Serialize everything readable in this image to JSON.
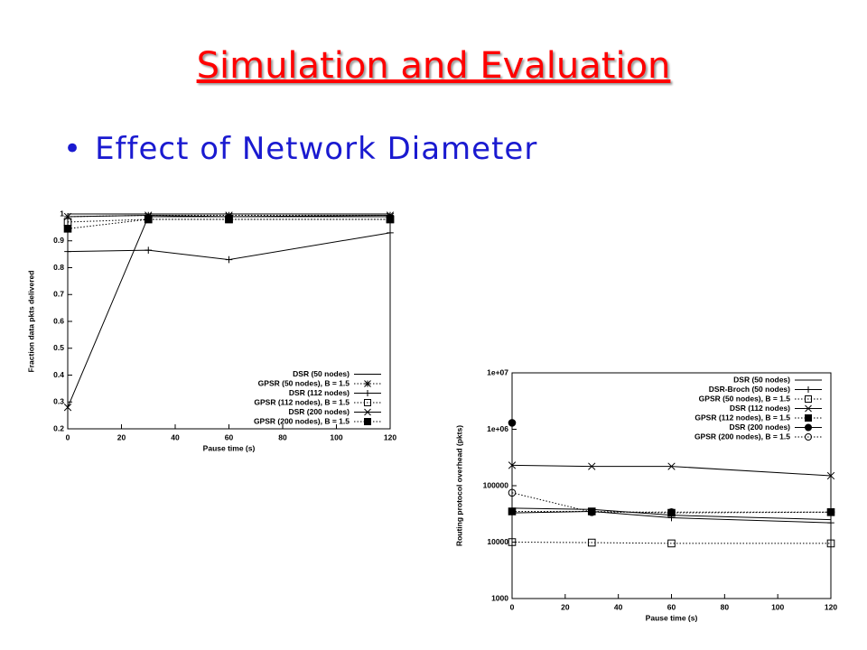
{
  "header": {
    "title": "Simulation and Evaluation",
    "bullet": "Effect of Network Diameter"
  },
  "chart_data": [
    {
      "type": "line",
      "xlabel": "Pause time (s)",
      "ylabel": "Fraction data pkts delivered",
      "x": [
        0,
        30,
        60,
        120
      ],
      "xlim": [
        0,
        120
      ],
      "xticks": [
        0,
        20,
        40,
        60,
        80,
        100,
        120
      ],
      "ylim": [
        0.2,
        1
      ],
      "yticks": [
        0.2,
        0.3,
        0.4,
        0.5,
        0.6,
        0.7,
        0.8,
        0.9,
        1
      ],
      "log": false,
      "legend": "lower right",
      "series": [
        {
          "name": "DSR (50 nodes)",
          "color": "#000000",
          "marker": "none",
          "dash": false,
          "values": [
            0.99,
            0.995,
            0.99,
            0.995
          ]
        },
        {
          "name": "GPSR (50 nodes), B = 1.5",
          "color": "#000000",
          "marker": "star",
          "dash": true,
          "values": [
            0.99,
            0.995,
            0.995,
            0.995
          ]
        },
        {
          "name": "DSR (112 nodes)",
          "color": "#000000",
          "marker": "plus",
          "dash": false,
          "values": [
            0.86,
            0.865,
            0.83,
            0.93
          ]
        },
        {
          "name": "GPSR (112 nodes), B = 1.5",
          "color": "#000000",
          "marker": "square-open",
          "dash": true,
          "values": [
            0.97,
            0.98,
            0.98,
            0.98
          ]
        },
        {
          "name": "DSR (200 nodes)",
          "color": "#000000",
          "marker": "x",
          "dash": false,
          "values": [
            0.28,
            0.99,
            0.99,
            0.99
          ]
        },
        {
          "name": "GPSR (200 nodes), B = 1.5",
          "color": "#000000",
          "marker": "square-filled",
          "dash": true,
          "values": [
            0.945,
            0.98,
            0.98,
            0.98
          ]
        }
      ]
    },
    {
      "type": "line",
      "xlabel": "Pause time (s)",
      "ylabel": "Routing protocol overhead (pkts)",
      "x": [
        0,
        30,
        60,
        120
      ],
      "xlim": [
        0,
        120
      ],
      "xticks": [
        0,
        20,
        40,
        60,
        80,
        100,
        120
      ],
      "ylim": [
        1000,
        10000000
      ],
      "yticks": [
        1000,
        10000,
        100000,
        {
          "value": 1000000,
          "label": "1e+06"
        },
        {
          "value": 10000000,
          "label": "1e+07"
        }
      ],
      "log": true,
      "legend": "upper right",
      "series": [
        {
          "name": "DSR (50 nodes)",
          "color": "#000000",
          "marker": "none",
          "dash": false,
          "values": [
            40000,
            38000,
            30000,
            25000
          ]
        },
        {
          "name": "DSR-Broch (50 nodes)",
          "color": "#000000",
          "marker": "plus",
          "dash": false,
          "values": [
            33000,
            35000,
            27000,
            22000
          ]
        },
        {
          "name": "GPSR (50 nodes), B = 1.5",
          "color": "#000000",
          "marker": "square-open",
          "dash": true,
          "values": [
            10000,
            9800,
            9500,
            9500
          ]
        },
        {
          "name": "DSR (112 nodes)",
          "color": "#000000",
          "marker": "x",
          "dash": false,
          "values": [
            230000,
            220000,
            220000,
            150000
          ]
        },
        {
          "name": "GPSR (112 nodes), B = 1.5",
          "color": "#000000",
          "marker": "square-filled",
          "dash": true,
          "values": [
            35000,
            35000,
            33000,
            34000
          ]
        },
        {
          "name": "DSR (200 nodes)",
          "color": "#000000",
          "marker": "circle-filled",
          "dash": false,
          "values": [
            1300000,
            null,
            null,
            null
          ]
        },
        {
          "name": "GPSR (200 nodes), B = 1.5",
          "color": "#000000",
          "marker": "circle-open",
          "dash": true,
          "values": [
            75000,
            34000,
            34000,
            34000
          ]
        }
      ]
    }
  ]
}
